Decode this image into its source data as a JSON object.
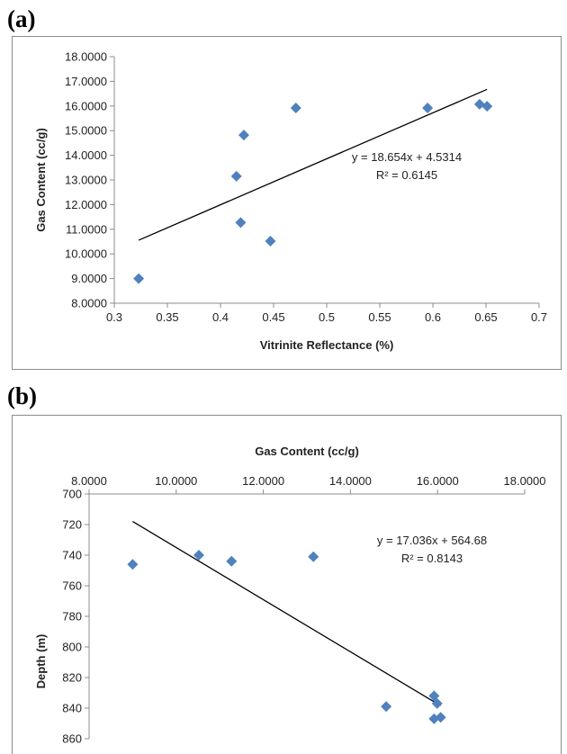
{
  "panels": {
    "a_label": "(a)",
    "b_label": "(b)"
  },
  "chart_data": [
    {
      "type": "scatter",
      "title": "",
      "xlabel": "Vitrinite Reflectance (%)",
      "ylabel": "Gas Content (cc/g)",
      "xlim": [
        0.3,
        0.7
      ],
      "ylim": [
        8,
        18
      ],
      "x_ticks": [
        "0.3",
        "0.35",
        "0.4",
        "0.45",
        "0.5",
        "0.55",
        "0.6",
        "0.65",
        "0.7"
      ],
      "y_ticks": [
        "8.0000",
        "9.0000",
        "10.0000",
        "11.0000",
        "12.0000",
        "13.0000",
        "14.0000",
        "15.0000",
        "16.0000",
        "17.0000",
        "18.0000"
      ],
      "points": [
        {
          "x": 0.323,
          "y": 9.0
        },
        {
          "x": 0.415,
          "y": 13.15
        },
        {
          "x": 0.419,
          "y": 11.27
        },
        {
          "x": 0.422,
          "y": 14.82
        },
        {
          "x": 0.447,
          "y": 10.52
        },
        {
          "x": 0.471,
          "y": 15.92
        },
        {
          "x": 0.595,
          "y": 15.92
        },
        {
          "x": 0.644,
          "y": 16.07
        },
        {
          "x": 0.651,
          "y": 15.99
        }
      ],
      "trendline": {
        "x_start": 0.323,
        "x_end": 0.651,
        "slope": 18.654,
        "intercept": 4.5314
      },
      "equation": "y = 18.654x + 4.5314",
      "r2": "R² = 0.6145",
      "grid": false,
      "marker_color": "#4f81bd"
    },
    {
      "type": "scatter",
      "title": "",
      "xlabel": "Gas Content (cc/g)",
      "ylabel": "Depth (m)",
      "x_axis_position": "top",
      "y_reversed": true,
      "xlim": [
        8,
        18
      ],
      "ylim": [
        700,
        860
      ],
      "x_ticks": [
        "8.0000",
        "10.0000",
        "12.0000",
        "14.0000",
        "16.0000",
        "18.0000"
      ],
      "y_ticks": [
        "700",
        "720",
        "740",
        "760",
        "780",
        "800",
        "820",
        "840",
        "860"
      ],
      "points": [
        {
          "x": 9.0,
          "y": 746
        },
        {
          "x": 10.52,
          "y": 740
        },
        {
          "x": 11.27,
          "y": 744
        },
        {
          "x": 13.15,
          "y": 741
        },
        {
          "x": 14.82,
          "y": 839
        },
        {
          "x": 15.92,
          "y": 832
        },
        {
          "x": 15.99,
          "y": 837
        },
        {
          "x": 15.92,
          "y": 847
        },
        {
          "x": 16.07,
          "y": 846
        }
      ],
      "trendline": {
        "x_start": 9.0,
        "x_end": 16.07,
        "slope": 17.036,
        "intercept": 564.68
      },
      "equation": "y = 17.036x + 564.68",
      "r2": "R² = 0.8143",
      "grid": false,
      "marker_color": "#4f81bd"
    }
  ]
}
